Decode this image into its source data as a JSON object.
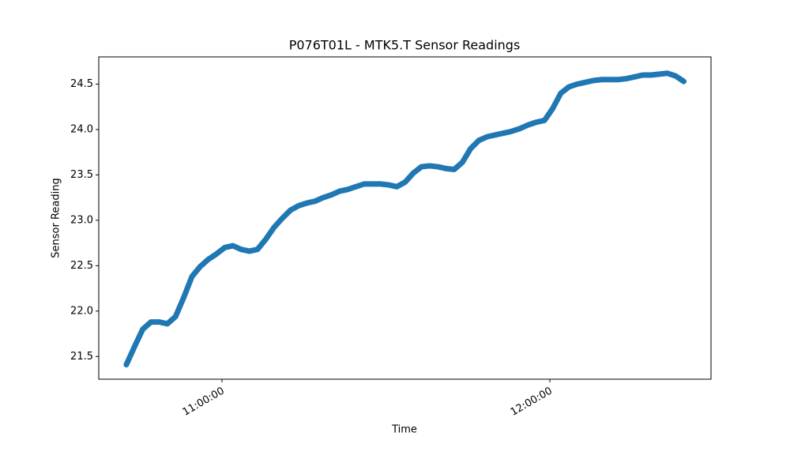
{
  "chart_data": {
    "type": "line",
    "title": "P076T01L - MTK5.T Sensor Readings",
    "xlabel": "Time",
    "ylabel": "Sensor Reading",
    "color": "#1f77b4",
    "x": [
      "10:42:30",
      "10:44:00",
      "10:45:30",
      "10:47:00",
      "10:48:30",
      "10:50:00",
      "10:51:30",
      "10:53:00",
      "10:54:30",
      "10:56:00",
      "10:57:30",
      "10:59:00",
      "11:00:30",
      "11:02:00",
      "11:03:30",
      "11:05:00",
      "11:06:30",
      "11:08:00",
      "11:09:30",
      "11:11:00",
      "11:12:30",
      "11:14:00",
      "11:15:30",
      "11:17:00",
      "11:18:30",
      "11:20:00",
      "11:21:30",
      "11:23:00",
      "11:24:30",
      "11:26:00",
      "11:27:30",
      "11:29:00",
      "11:30:30",
      "11:32:00",
      "11:33:30",
      "11:35:00",
      "11:36:30",
      "11:38:00",
      "11:39:30",
      "11:41:00",
      "11:42:30",
      "11:44:00",
      "11:45:30",
      "11:47:00",
      "11:48:30",
      "11:50:00",
      "11:51:30",
      "11:53:00",
      "11:54:30",
      "11:56:00",
      "11:57:30",
      "11:59:00",
      "12:00:30",
      "12:02:00",
      "12:03:30",
      "12:05:00",
      "12:06:30",
      "12:08:00",
      "12:09:30",
      "12:11:00",
      "12:12:30",
      "12:14:00",
      "12:15:30",
      "12:17:00",
      "12:18:30",
      "12:20:00",
      "12:21:30",
      "12:23:00",
      "12:24:30"
    ],
    "values": [
      21.41,
      21.61,
      21.8,
      21.88,
      21.88,
      21.86,
      21.94,
      22.15,
      22.38,
      22.49,
      22.57,
      22.63,
      22.7,
      22.72,
      22.68,
      22.66,
      22.68,
      22.79,
      22.92,
      23.02,
      23.11,
      23.16,
      23.19,
      23.21,
      23.25,
      23.28,
      23.32,
      23.34,
      23.37,
      23.4,
      23.4,
      23.4,
      23.39,
      23.37,
      23.42,
      23.52,
      23.59,
      23.6,
      23.59,
      23.57,
      23.56,
      23.64,
      23.79,
      23.88,
      23.92,
      23.94,
      23.96,
      23.98,
      24.01,
      24.05,
      24.08,
      24.1,
      24.23,
      24.4,
      24.47,
      24.5,
      24.52,
      24.54,
      24.55,
      24.55,
      24.55,
      24.56,
      24.58,
      24.6,
      24.6,
      24.61,
      24.62,
      24.59,
      24.53
    ],
    "xlim": [
      "10:37:27",
      "12:29:29"
    ],
    "xticks": [
      "11:00:00",
      "12:00:00"
    ],
    "ylim": [
      21.25,
      24.8
    ],
    "yticks": [
      21.5,
      {
        "value": 22,
        "label": "22.0"
      },
      22.5,
      {
        "value": 23,
        "label": "23.0"
      },
      23.5,
      {
        "value": 24,
        "label": "24.0"
      },
      24.5
    ]
  }
}
